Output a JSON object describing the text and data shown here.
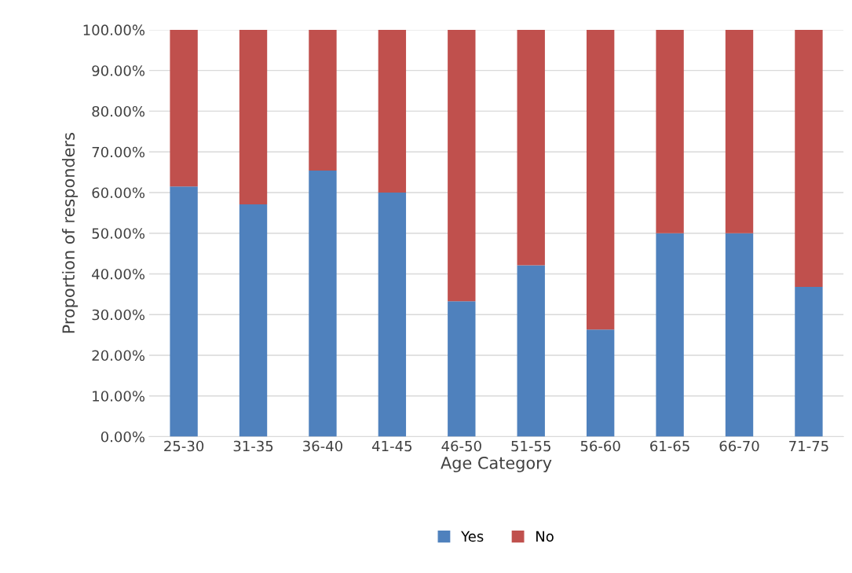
{
  "chart_data": {
    "type": "bar",
    "stacked": true,
    "xlabel": "Age Category",
    "ylabel": "Proportion of responders",
    "categories": [
      "25-30",
      "31-35",
      "36-40",
      "41-45",
      "46-50",
      "51-55",
      "56-60",
      "61-65",
      "66-70",
      "71-75"
    ],
    "series": [
      {
        "name": "Yes",
        "color": "#4f81bd",
        "values": [
          61.5,
          57.1,
          65.4,
          60.0,
          33.3,
          42.1,
          26.3,
          50.0,
          50.0,
          36.8
        ]
      },
      {
        "name": "No",
        "color": "#c0504d",
        "values": [
          38.5,
          42.9,
          34.6,
          40.0,
          66.7,
          57.9,
          73.7,
          50.0,
          50.0,
          63.2
        ]
      }
    ],
    "ylim": [
      0,
      100
    ],
    "yticks": [
      {
        "value": 0,
        "label": "0.00%"
      },
      {
        "value": 10,
        "label": "10.00%"
      },
      {
        "value": 20,
        "label": "20.00%"
      },
      {
        "value": 30,
        "label": "30.00%"
      },
      {
        "value": 40,
        "label": "40.00%"
      },
      {
        "value": 50,
        "label": "50.00%"
      },
      {
        "value": 60,
        "label": "60.00%"
      },
      {
        "value": 70,
        "label": "70.00%"
      },
      {
        "value": 80,
        "label": "80.00%"
      },
      {
        "value": 90,
        "label": "90.00%"
      },
      {
        "value": 100,
        "label": "100.00%"
      }
    ],
    "grid": "y",
    "legend": "bottom"
  }
}
